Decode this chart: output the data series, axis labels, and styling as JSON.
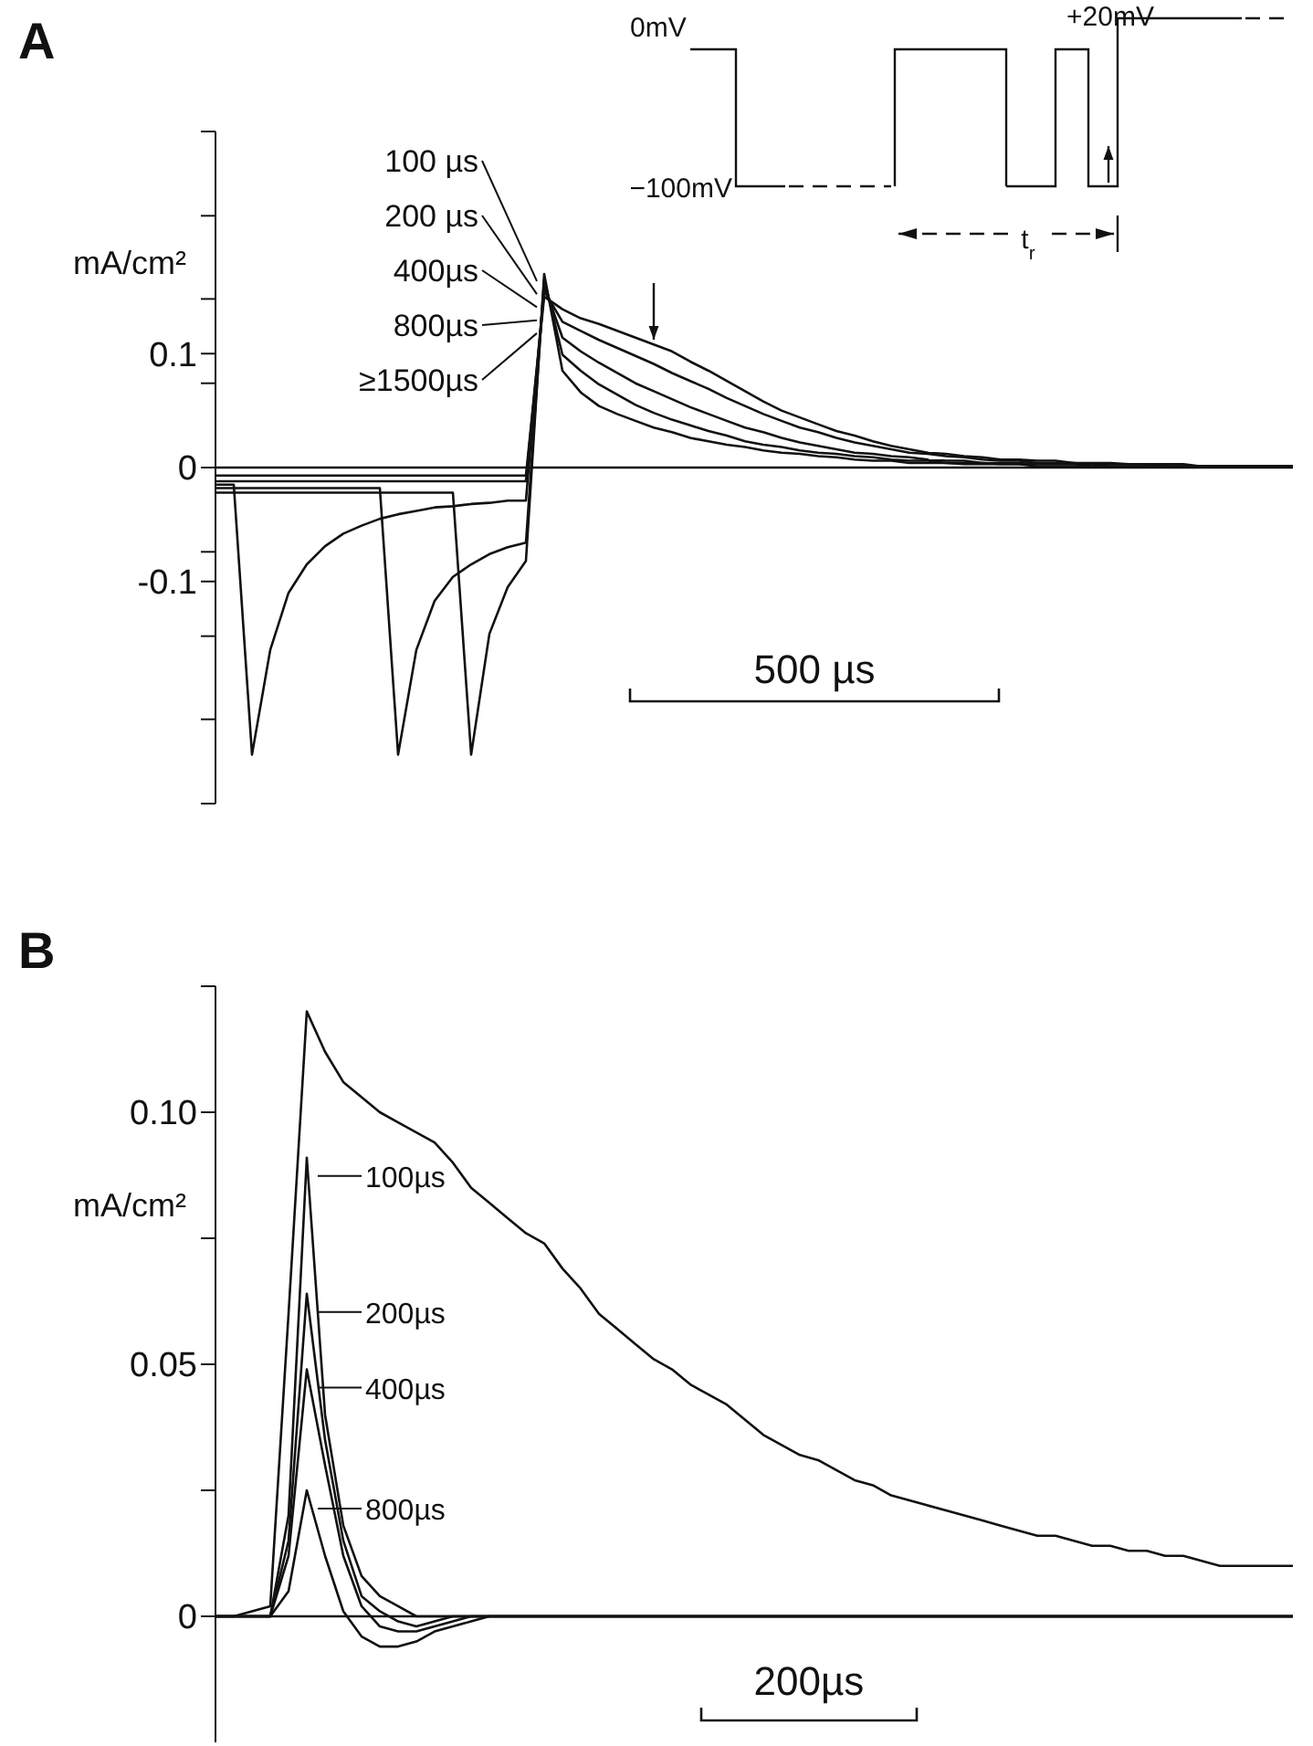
{
  "chart_data": [
    {
      "type": "line",
      "title": "A",
      "ylabel": "mA/cm²",
      "categories": [
        null,
        null,
        null,
        null,
        null,
        null,
        null,
        null,
        null,
        null,
        null,
        null,
        null,
        null,
        null,
        null,
        null,
        null,
        null,
        null,
        null,
        null,
        null,
        null,
        null,
        null,
        null,
        null,
        null,
        null,
        null,
        null,
        null,
        null,
        null,
        null,
        null,
        null,
        null,
        null,
        null,
        null,
        null,
        null,
        null,
        null,
        null,
        null,
        null,
        null,
        null,
        null,
        null,
        null,
        null,
        null,
        null,
        null,
        null,
        null
      ],
      "ylim": [
        -0.295,
        0.295
      ],
      "yticks": [
        {
          "value": -0.295,
          "label": null
        },
        {
          "value": -0.221,
          "label": null
        },
        {
          "value": -0.148,
          "label": null
        },
        {
          "value": -0.1,
          "label": "-0.1"
        },
        {
          "value": -0.074,
          "label": null
        },
        0,
        {
          "value": 0.074,
          "label": null
        },
        {
          "value": 0.1,
          "label": "0.1"
        },
        {
          "value": 0.148,
          "label": null
        },
        {
          "value": 0.221,
          "label": null
        },
        {
          "value": 0.295,
          "label": null
        }
      ],
      "tick_labels": "y",
      "ref_lines": [
        {
          "axis": "y",
          "value": 0
        }
      ],
      "annotations": [
        "0mV",
        "−100mV",
        "+20mV",
        "t$_{r}$",
        "500 µs"
      ],
      "legend": "top left",
      "series": [
        {
          "name": "100 µs",
          "color": "#111111",
          "values": [
            -0.022,
            -0.022,
            -0.022,
            -0.022,
            -0.022,
            -0.022,
            -0.022,
            -0.022,
            -0.022,
            -0.022,
            -0.022,
            -0.022,
            -0.022,
            -0.022,
            -0.252,
            -0.146,
            -0.105,
            -0.082,
            0.17,
            0.085,
            0.066,
            0.054,
            0.047,
            0.041,
            0.035,
            0.031,
            0.026,
            0.023,
            0.02,
            0.018,
            0.015,
            0.013,
            0.012,
            0.01,
            0.009,
            0.007,
            0.006,
            0.006,
            0.004,
            0.004,
            0.004,
            0.003,
            0.003,
            0.003,
            0.003,
            0.001,
            0.001,
            0.001,
            0.001,
            0.001,
            0.001,
            0.001,
            0.001,
            0.001,
            0.001,
            0.001,
            0.001,
            0.001,
            0.001,
            0.001
          ]
        },
        {
          "name": "200 µs",
          "color": "#111111",
          "values": [
            -0.018,
            -0.018,
            -0.018,
            -0.018,
            -0.018,
            -0.018,
            -0.018,
            -0.018,
            -0.018,
            -0.018,
            -0.252,
            -0.16,
            -0.117,
            -0.096,
            -0.085,
            -0.076,
            -0.07,
            -0.066,
            0.165,
            0.099,
            0.085,
            0.073,
            0.064,
            0.055,
            0.048,
            0.042,
            0.037,
            0.032,
            0.028,
            0.023,
            0.02,
            0.018,
            0.015,
            0.013,
            0.012,
            0.01,
            0.009,
            0.007,
            0.006,
            0.006,
            0.004,
            0.004,
            0.004,
            0.003,
            0.003,
            0.003,
            0.003,
            0.003,
            0.001,
            0.001,
            0.001,
            0.001,
            0.001,
            0.001,
            0.001,
            0.001,
            0.001,
            0.001,
            0.001,
            0.001
          ]
        },
        {
          "name": "400µs",
          "color": "#111111",
          "values": [
            -0.015,
            -0.015,
            -0.252,
            -0.16,
            -0.11,
            -0.085,
            -0.069,
            -0.058,
            -0.051,
            -0.045,
            -0.041,
            -0.038,
            -0.035,
            -0.034,
            -0.032,
            -0.031,
            -0.029,
            -0.029,
            0.16,
            0.114,
            0.102,
            0.092,
            0.083,
            0.074,
            0.067,
            0.06,
            0.053,
            0.047,
            0.041,
            0.035,
            0.031,
            0.026,
            0.022,
            0.019,
            0.016,
            0.013,
            0.012,
            0.01,
            0.009,
            0.007,
            0.006,
            0.006,
            0.004,
            0.004,
            0.004,
            0.003,
            0.003,
            0.003,
            0.003,
            0.001,
            0.001,
            0.001,
            0.001,
            0.001,
            0.001,
            0.001,
            0.001,
            0.001,
            0.001,
            0.001
          ]
        },
        {
          "name": "800µs",
          "color": "#111111",
          "values": [
            -0.012,
            -0.012,
            -0.012,
            -0.012,
            -0.012,
            -0.012,
            -0.012,
            -0.012,
            -0.012,
            -0.012,
            -0.012,
            -0.012,
            -0.012,
            -0.012,
            -0.012,
            -0.012,
            -0.012,
            -0.012,
            0.155,
            0.128,
            0.12,
            0.112,
            0.105,
            0.098,
            0.091,
            0.083,
            0.076,
            0.069,
            0.061,
            0.054,
            0.047,
            0.041,
            0.035,
            0.031,
            0.026,
            0.022,
            0.019,
            0.016,
            0.013,
            0.012,
            0.01,
            0.009,
            0.007,
            0.006,
            0.006,
            0.004,
            0.004,
            0.004,
            0.003,
            0.003,
            0.003,
            0.003,
            0.001,
            0.001,
            0.001,
            0.001,
            0.001,
            0.001,
            0.001,
            0.001
          ]
        },
        {
          "name": "≥1500µs",
          "color": "#111111",
          "values": [
            -0.007,
            -0.007,
            -0.007,
            -0.007,
            -0.007,
            -0.007,
            -0.007,
            -0.007,
            -0.007,
            -0.007,
            -0.007,
            -0.007,
            -0.007,
            -0.007,
            -0.007,
            -0.007,
            -0.007,
            -0.007,
            0.15,
            0.139,
            0.131,
            0.126,
            0.12,
            0.114,
            0.108,
            0.102,
            0.093,
            0.085,
            0.076,
            0.067,
            0.058,
            0.05,
            0.044,
            0.038,
            0.032,
            0.028,
            0.023,
            0.019,
            0.016,
            0.013,
            0.012,
            0.01,
            0.009,
            0.007,
            0.007,
            0.006,
            0.006,
            0.004,
            0.004,
            0.004,
            0.003,
            0.003,
            0.003,
            0.003,
            0.001,
            0.001,
            0.001,
            0.001,
            0.001,
            0.001
          ]
        }
      ]
    },
    {
      "type": "line",
      "title": "B",
      "ylabel": "mA/cm²",
      "categories": [
        null,
        null,
        null,
        null,
        null,
        null,
        null,
        null,
        null,
        null,
        null,
        null,
        null,
        null,
        null,
        null,
        null,
        null,
        null,
        null,
        null,
        null,
        null,
        null,
        null,
        null,
        null,
        null,
        null,
        null,
        null,
        null,
        null,
        null,
        null,
        null,
        null,
        null,
        null,
        null,
        null,
        null,
        null,
        null,
        null,
        null,
        null,
        null,
        null,
        null,
        null,
        null,
        null,
        null,
        null,
        null,
        null,
        null,
        null,
        null
      ],
      "ylim": [
        -0.025,
        0.125
      ],
      "yticks": [
        0,
        {
          "value": 0.025,
          "label": null
        },
        {
          "value": 0.05,
          "label": "0.05"
        },
        {
          "value": 0.075,
          "label": null
        },
        {
          "value": 0.1,
          "label": "0.10"
        },
        {
          "value": 0.125,
          "label": null
        }
      ],
      "tick_labels": "y",
      "ref_lines": [
        {
          "axis": "y",
          "value": 0
        }
      ],
      "annotations": [
        "200µs"
      ],
      "legend": "left",
      "series": [
        {
          "color": "#111111",
          "values": [
            0,
            0,
            0.001,
            0.002,
            0.06,
            0.12,
            0.112,
            0.106,
            0.103,
            0.1,
            0.098,
            0.096,
            0.094,
            0.09,
            0.085,
            0.082,
            0.079,
            0.076,
            0.074,
            0.069,
            0.065,
            0.06,
            0.057,
            0.054,
            0.051,
            0.049,
            0.046,
            0.044,
            0.042,
            0.039,
            0.036,
            0.034,
            0.032,
            0.031,
            0.029,
            0.027,
            0.026,
            0.024,
            0.023,
            0.022,
            0.021,
            0.02,
            0.019,
            0.018,
            0.017,
            0.016,
            0.016,
            0.015,
            0.014,
            0.014,
            0.013,
            0.013,
            0.012,
            0.012,
            0.011,
            0.01,
            0.01,
            0.01,
            0.01,
            0.01
          ]
        },
        {
          "name": "100µs",
          "color": "#111111",
          "values": [
            0,
            0,
            0,
            0,
            0.02,
            0.091,
            0.04,
            0.018,
            0.008,
            0.004,
            0.002,
            0,
            0,
            0,
            0,
            0,
            0,
            0,
            0,
            0,
            0,
            0,
            0,
            0,
            0,
            0,
            0,
            0,
            0,
            0,
            0,
            0,
            0,
            0,
            0,
            0,
            0,
            0,
            0,
            0,
            0,
            0,
            0,
            0,
            0,
            0,
            0,
            0,
            0,
            0,
            0,
            0,
            0,
            0,
            0,
            0,
            0,
            0,
            0,
            0
          ]
        },
        {
          "name": "200µs",
          "color": "#111111",
          "values": [
            0,
            0,
            0,
            0,
            0.015,
            0.064,
            0.035,
            0.015,
            0.004,
            0.001,
            -0.001,
            -0.002,
            -0.001,
            0,
            0,
            0,
            0,
            0,
            0,
            0,
            0,
            0,
            0,
            0,
            0,
            0,
            0,
            0,
            0,
            0,
            0,
            0,
            0,
            0,
            0,
            0,
            0,
            0,
            0,
            0,
            0,
            0,
            0,
            0,
            0,
            0,
            0,
            0,
            0,
            0,
            0,
            0,
            0,
            0,
            0,
            0,
            0,
            0,
            0,
            0
          ]
        },
        {
          "name": "400µs",
          "color": "#111111",
          "values": [
            0,
            0,
            0,
            0,
            0.012,
            0.049,
            0.03,
            0.012,
            0.002,
            -0.002,
            -0.003,
            -0.003,
            -0.002,
            -0.001,
            0,
            0,
            0,
            0,
            0,
            0,
            0,
            0,
            0,
            0,
            0,
            0,
            0,
            0,
            0,
            0,
            0,
            0,
            0,
            0,
            0,
            0,
            0,
            0,
            0,
            0,
            0,
            0,
            0,
            0,
            0,
            0,
            0,
            0,
            0,
            0,
            0,
            0,
            0,
            0,
            0,
            0,
            0,
            0,
            0,
            0
          ]
        },
        {
          "name": "800µs",
          "color": "#111111",
          "values": [
            0,
            0,
            0,
            0,
            0.005,
            0.025,
            0.012,
            0.001,
            -0.004,
            -0.006,
            -0.006,
            -0.005,
            -0.003,
            -0.002,
            -0.001,
            0,
            0,
            0,
            0,
            0,
            0,
            0,
            0,
            0,
            0,
            0,
            0,
            0,
            0,
            0,
            0,
            0,
            0,
            0,
            0,
            0,
            0,
            0,
            0,
            0,
            0,
            0,
            0,
            0,
            0,
            0,
            0,
            0,
            0,
            0,
            0,
            0,
            0,
            0,
            0,
            0,
            0,
            0,
            0,
            0
          ]
        }
      ]
    }
  ]
}
